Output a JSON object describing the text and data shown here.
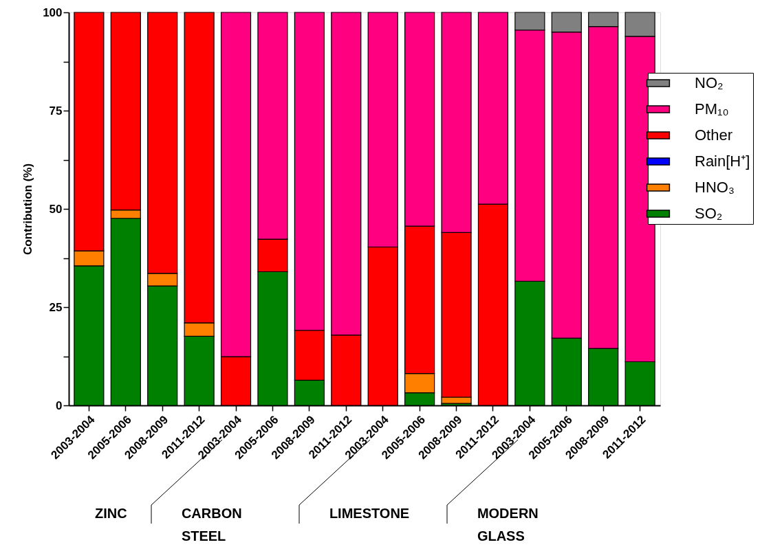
{
  "chart_data": {
    "type": "bar",
    "stacked": true,
    "ylabel": "Contribution (%)",
    "categories": [
      "2003-2004",
      "2005-2006",
      "2008-2009",
      "2011-2012",
      "2003-2004",
      "2005-2006",
      "2008-2009",
      "2011-2012",
      "2003-2004",
      "2005-2006",
      "2008-2009",
      "2011-2012",
      "2003-2004",
      "2005-2006",
      "2008-2009",
      "2011-2012"
    ],
    "series": [
      {
        "name": "SO₂",
        "color": "#008000",
        "values": [
          35.5,
          47.6,
          30.4,
          17.6,
          0,
          34.0,
          6.4,
          0,
          0,
          3.2,
          0.5,
          0,
          31.6,
          17.1,
          14.5,
          11.1
        ]
      },
      {
        "name": "HNO₃",
        "color": "#ff8000",
        "values": [
          3.8,
          2.1,
          3.2,
          3.4,
          0,
          0,
          0,
          0,
          0,
          4.9,
          1.6,
          0,
          0,
          0,
          0,
          0
        ]
      },
      {
        "name": "Rain[H⁺]",
        "color": "#0000ff",
        "values": [
          0,
          0,
          0,
          0,
          0,
          0,
          0,
          0,
          0,
          0,
          0,
          0,
          0,
          0,
          0,
          0
        ]
      },
      {
        "name": "Other",
        "color": "#ff0000",
        "values": [
          60.7,
          50.3,
          66.4,
          79.0,
          12.4,
          8.3,
          12.7,
          17.9,
          40.3,
          37.5,
          41.9,
          51.2,
          0,
          0,
          0,
          0
        ]
      },
      {
        "name": "PM₁₀",
        "color": "#ff0080",
        "values": [
          0,
          0,
          0,
          0,
          87.6,
          57.7,
          80.9,
          82.1,
          59.7,
          54.4,
          56.0,
          48.8,
          63.9,
          77.9,
          81.9,
          82.8
        ]
      },
      {
        "name": "NO₂",
        "color": "#808080",
        "values": [
          0,
          0,
          0,
          0,
          0,
          0,
          0,
          0,
          0,
          0,
          0,
          0,
          4.5,
          5.0,
          3.6,
          6.1
        ]
      }
    ],
    "ylim": [
      0,
      100
    ],
    "yticks": [
      0,
      {
        "value": 12.5,
        "label": null
      },
      25,
      {
        "value": 37.5,
        "label": null
      },
      50,
      {
        "value": 62.5,
        "label": null
      },
      75,
      {
        "value": 87.5,
        "label": null
      },
      100
    ],
    "legend": "top right",
    "annotations": [
      "ZINC",
      "CARBON STEEL",
      "LIMESTONE",
      "MODERN GLASS"
    ]
  }
}
